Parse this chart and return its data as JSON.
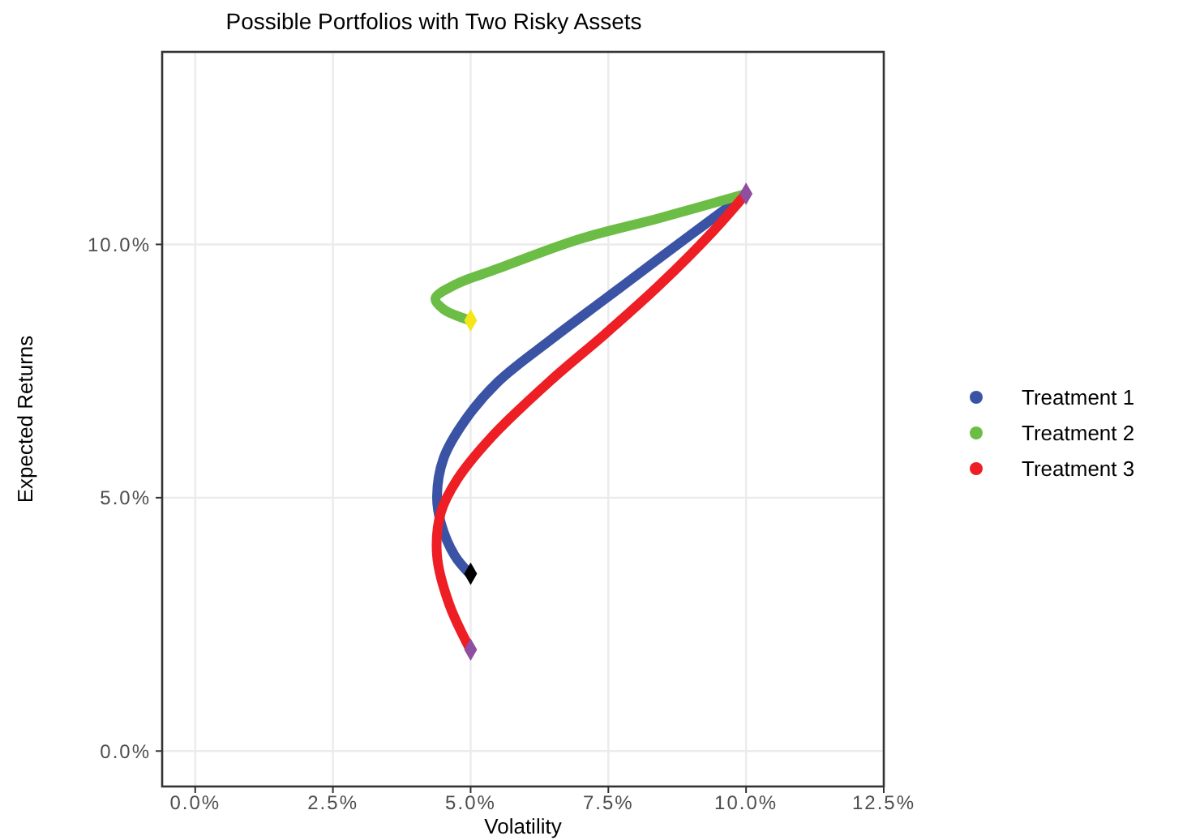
{
  "chart_data": {
    "type": "line",
    "title": "Possible Portfolios with Two Risky Assets",
    "xlabel": "Volatility",
    "ylabel": "Expected Returns",
    "xlim": [
      -0.6,
      12.5
    ],
    "xticks": [
      {
        "value": 0,
        "label": "0.0%"
      },
      {
        "value": 2.5,
        "label": "2.5%"
      },
      {
        "value": 5,
        "label": "5.0%"
      },
      {
        "value": 7.5,
        "label": "7.5%"
      },
      {
        "value": 10,
        "label": "10.0%"
      },
      {
        "value": 12.5,
        "label": "12.5%"
      }
    ],
    "ylim": [
      -0.7,
      13.8
    ],
    "yticks": [
      {
        "value": 0,
        "label": "0.0%"
      },
      {
        "value": 5,
        "label": "5.0%"
      },
      {
        "value": 10,
        "label": "10.0%"
      }
    ],
    "grid": true,
    "legend": "right",
    "marker": "none",
    "line_style": "solid",
    "series": [
      {
        "name": "Treatment 1",
        "color": "#3a53a4",
        "x": [
          5,
          4.71,
          4.46,
          4.39,
          4.51,
          4.9,
          5.49,
          6.47,
          7.45,
          8.43,
          9.22,
          10
        ],
        "values": [
          3.48,
          3.86,
          4.5,
          5.03,
          5.78,
          6.53,
          7.28,
          8.13,
          8.93,
          9.73,
          10.37,
          11
        ]
      },
      {
        "name": "Treatment 2",
        "color": "#6cbd45",
        "x": [
          5,
          4.51,
          4.36,
          4.71,
          5.49,
          6.96,
          8.43,
          10
        ],
        "values": [
          8.5,
          8.72,
          8.93,
          9.2,
          9.52,
          10.1,
          10.52,
          11
        ]
      },
      {
        "name": "Treatment 3",
        "color": "#ed1f24",
        "x": [
          5,
          4.61,
          4.39,
          4.46,
          4.75,
          5.39,
          6.47,
          7.45,
          8.43,
          9.41,
          10
        ],
        "values": [
          1.99,
          2.9,
          3.86,
          4.71,
          5.35,
          6.21,
          7.33,
          8.24,
          9.2,
          10.27,
          11
        ]
      },
      {
        "type": "scatter",
        "marker": "diamond",
        "color": "#8e4fa0",
        "x": [
          10,
          5
        ],
        "values": [
          11,
          2
        ]
      },
      {
        "type": "scatter",
        "marker": "diamond",
        "color": "#f5e61a",
        "x": [
          5
        ],
        "values": [
          8.5
        ]
      },
      {
        "type": "scatter",
        "marker": "diamond",
        "color": "#000000",
        "x": [
          5
        ],
        "values": [
          3.5
        ]
      }
    ]
  }
}
